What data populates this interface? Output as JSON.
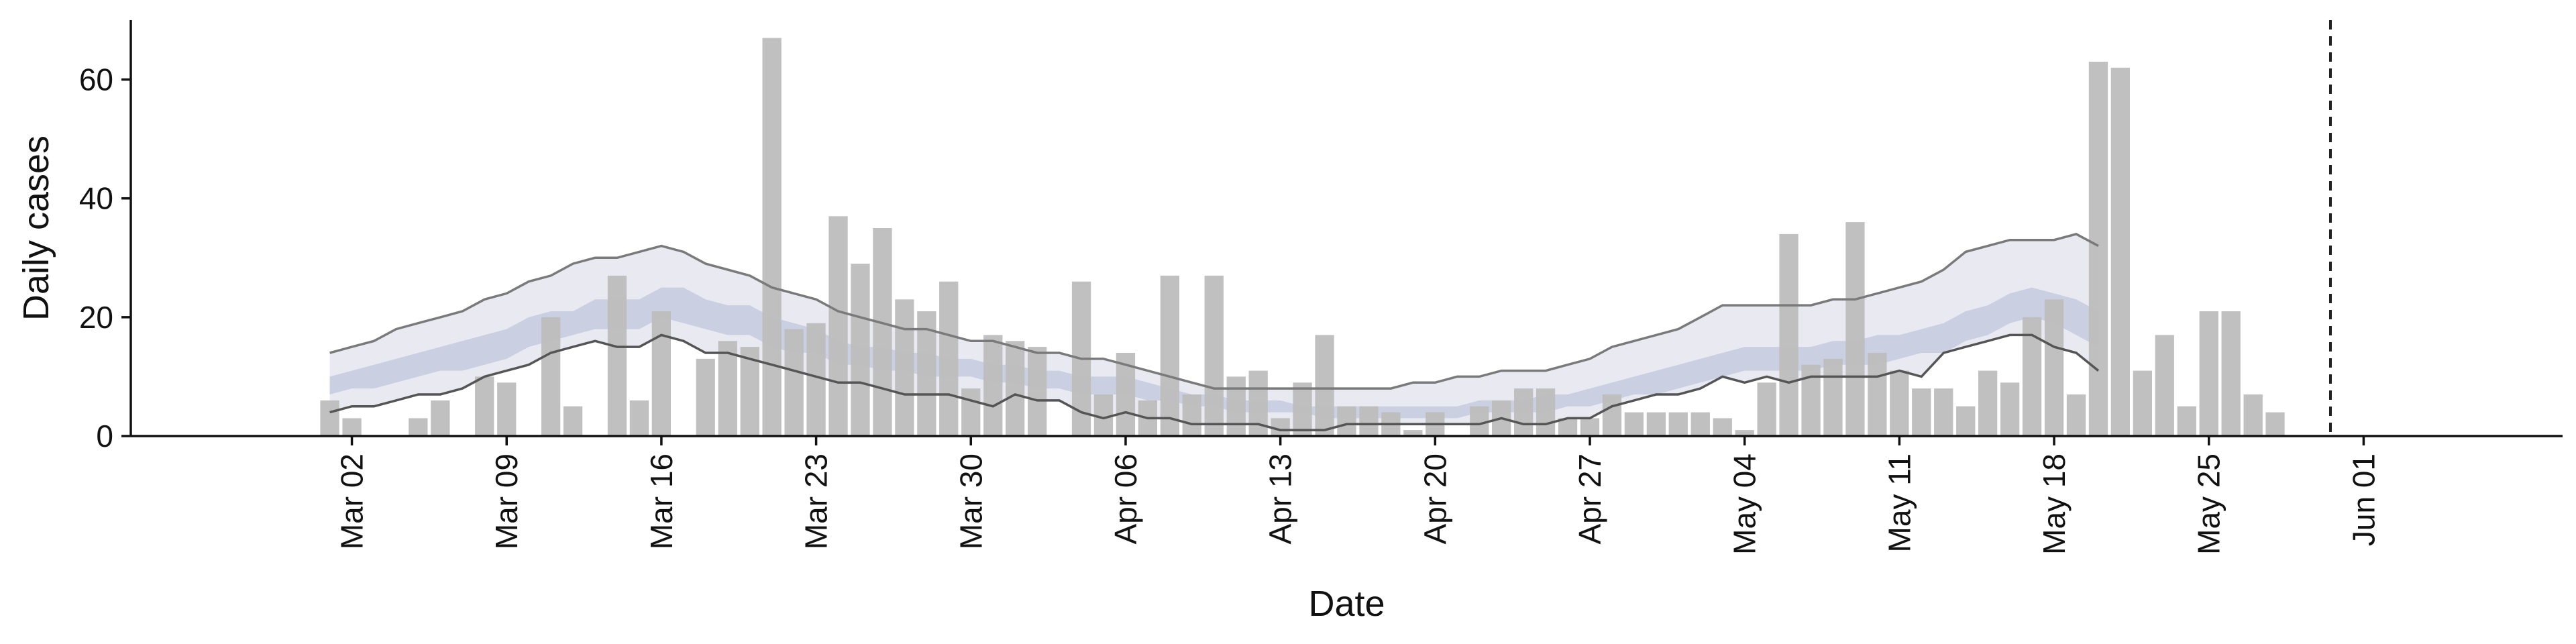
{
  "chart_data": {
    "type": "bar",
    "xlabel": "Date",
    "ylabel": "Daily cases",
    "ylim": [
      0,
      70
    ],
    "yticks": [
      0,
      20,
      40,
      60
    ],
    "x_tick_labels": [
      "Mar 02",
      "Mar 09",
      "Mar 16",
      "Mar 23",
      "Mar 30",
      "Apr 06",
      "Apr 13",
      "Apr 20",
      "Apr 27",
      "May 04",
      "May 11",
      "May 18",
      "May 25",
      "Jun 01"
    ],
    "x_tick_dates": [
      "2020-03-02",
      "2020-03-09",
      "2020-03-16",
      "2020-03-23",
      "2020-03-30",
      "2020-04-06",
      "2020-04-13",
      "2020-04-20",
      "2020-04-27",
      "2020-05-04",
      "2020-05-11",
      "2020-05-18",
      "2020-05-25",
      "2020-06-01"
    ],
    "dates": [
      "2020-03-01",
      "2020-03-02",
      "2020-03-03",
      "2020-03-04",
      "2020-03-05",
      "2020-03-06",
      "2020-03-07",
      "2020-03-08",
      "2020-03-09",
      "2020-03-10",
      "2020-03-11",
      "2020-03-12",
      "2020-03-13",
      "2020-03-14",
      "2020-03-15",
      "2020-03-16",
      "2020-03-17",
      "2020-03-18",
      "2020-03-19",
      "2020-03-20",
      "2020-03-21",
      "2020-03-22",
      "2020-03-23",
      "2020-03-24",
      "2020-03-25",
      "2020-03-26",
      "2020-03-27",
      "2020-03-28",
      "2020-03-29",
      "2020-03-30",
      "2020-03-31",
      "2020-04-01",
      "2020-04-02",
      "2020-04-03",
      "2020-04-04",
      "2020-04-05",
      "2020-04-06",
      "2020-04-07",
      "2020-04-08",
      "2020-04-09",
      "2020-04-10",
      "2020-04-11",
      "2020-04-12",
      "2020-04-13",
      "2020-04-14",
      "2020-04-15",
      "2020-04-16",
      "2020-04-17",
      "2020-04-18",
      "2020-04-19",
      "2020-04-20",
      "2020-04-21",
      "2020-04-22",
      "2020-04-23",
      "2020-04-24",
      "2020-04-25",
      "2020-04-26",
      "2020-04-27",
      "2020-04-28",
      "2020-04-29",
      "2020-04-30",
      "2020-05-01",
      "2020-05-02",
      "2020-05-03",
      "2020-05-04",
      "2020-05-05",
      "2020-05-06",
      "2020-05-07",
      "2020-05-08",
      "2020-05-09",
      "2020-05-10",
      "2020-05-11",
      "2020-05-12",
      "2020-05-13",
      "2020-05-14",
      "2020-05-15",
      "2020-05-16",
      "2020-05-17",
      "2020-05-18",
      "2020-05-19",
      "2020-05-20",
      "2020-05-21",
      "2020-05-22",
      "2020-05-23",
      "2020-05-24",
      "2020-05-25",
      "2020-05-26",
      "2020-05-27",
      "2020-05-28",
      "2020-05-29",
      "2020-05-30",
      "2020-05-31"
    ],
    "daily_cases": [
      6,
      3,
      0,
      0,
      3,
      6,
      0,
      10,
      9,
      0,
      20,
      5,
      0,
      27,
      6,
      21,
      0,
      13,
      16,
      15,
      67,
      18,
      19,
      37,
      29,
      35,
      23,
      21,
      26,
      8,
      17,
      16,
      15,
      0,
      26,
      7,
      14,
      6,
      27,
      7,
      27,
      10,
      11,
      3,
      9,
      17,
      5,
      5,
      4,
      1,
      4,
      0,
      5,
      6,
      8,
      8,
      3,
      3,
      7,
      4,
      4,
      4,
      4,
      3,
      1,
      9,
      34,
      12,
      13,
      36,
      14,
      11,
      8,
      8,
      5,
      11,
      9,
      20,
      23,
      7,
      63,
      62,
      11,
      17,
      5,
      21,
      21,
      7,
      4,
      0,
      0,
      0
    ],
    "forecast_dates": [
      "2020-03-01",
      "2020-03-02",
      "2020-03-03",
      "2020-03-04",
      "2020-03-05",
      "2020-03-06",
      "2020-03-07",
      "2020-03-08",
      "2020-03-09",
      "2020-03-10",
      "2020-03-11",
      "2020-03-12",
      "2020-03-13",
      "2020-03-14",
      "2020-03-15",
      "2020-03-16",
      "2020-03-17",
      "2020-03-18",
      "2020-03-19",
      "2020-03-20",
      "2020-03-21",
      "2020-03-22",
      "2020-03-23",
      "2020-03-24",
      "2020-03-25",
      "2020-03-26",
      "2020-03-27",
      "2020-03-28",
      "2020-03-29",
      "2020-03-30",
      "2020-03-31",
      "2020-04-01",
      "2020-04-02",
      "2020-04-03",
      "2020-04-04",
      "2020-04-05",
      "2020-04-06",
      "2020-04-07",
      "2020-04-08",
      "2020-04-09",
      "2020-04-10",
      "2020-04-11",
      "2020-04-12",
      "2020-04-13",
      "2020-04-14",
      "2020-04-15",
      "2020-04-16",
      "2020-04-17",
      "2020-04-18",
      "2020-04-19",
      "2020-04-20",
      "2020-04-21",
      "2020-04-22",
      "2020-04-23",
      "2020-04-24",
      "2020-04-25",
      "2020-04-26",
      "2020-04-27",
      "2020-04-28",
      "2020-04-29",
      "2020-04-30",
      "2020-05-01",
      "2020-05-02",
      "2020-05-03",
      "2020-05-04",
      "2020-05-05",
      "2020-05-06",
      "2020-05-07",
      "2020-05-08",
      "2020-05-09",
      "2020-05-10",
      "2020-05-11",
      "2020-05-12",
      "2020-05-13",
      "2020-05-14",
      "2020-05-15",
      "2020-05-16",
      "2020-05-17",
      "2020-05-18",
      "2020-05-19",
      "2020-05-20"
    ],
    "bands": {
      "outer_upper": [
        14,
        15,
        16,
        18,
        19,
        20,
        21,
        23,
        24,
        26,
        27,
        29,
        30,
        30,
        31,
        32,
        31,
        29,
        28,
        27,
        25,
        24,
        23,
        21,
        20,
        19,
        18,
        18,
        17,
        16,
        16,
        15,
        14,
        14,
        13,
        13,
        12,
        11,
        10,
        9,
        8,
        8,
        8,
        8,
        8,
        8,
        8,
        8,
        8,
        9,
        9,
        10,
        10,
        11,
        11,
        11,
        12,
        13,
        15,
        16,
        17,
        18,
        20,
        22,
        22,
        22,
        22,
        22,
        23,
        23,
        24,
        25,
        26,
        28,
        31,
        32,
        33,
        33,
        33,
        34,
        32
      ],
      "outer_lower": [
        4,
        5,
        5,
        6,
        7,
        7,
        8,
        10,
        11,
        12,
        14,
        15,
        16,
        15,
        15,
        17,
        16,
        14,
        14,
        13,
        12,
        11,
        10,
        9,
        9,
        8,
        7,
        7,
        7,
        6,
        5,
        7,
        6,
        6,
        4,
        3,
        4,
        3,
        3,
        2,
        2,
        2,
        2,
        1,
        1,
        1,
        2,
        2,
        2,
        2,
        2,
        2,
        2,
        3,
        2,
        2,
        3,
        3,
        5,
        6,
        7,
        7,
        8,
        10,
        9,
        10,
        9,
        10,
        10,
        10,
        10,
        11,
        10,
        14,
        15,
        16,
        17,
        17,
        15,
        14,
        11
      ],
      "inner_upper": [
        10,
        11,
        12,
        13,
        14,
        15,
        16,
        17,
        18,
        20,
        21,
        21,
        23,
        23,
        23,
        25,
        25,
        23,
        22,
        22,
        20,
        19,
        18,
        16,
        15,
        15,
        14,
        14,
        13,
        13,
        12,
        12,
        11,
        11,
        10,
        10,
        10,
        9,
        8,
        7,
        7,
        6,
        6,
        6,
        5,
        5,
        5,
        5,
        5,
        5,
        5,
        5,
        6,
        6,
        6,
        7,
        7,
        8,
        9,
        10,
        11,
        12,
        13,
        14,
        15,
        15,
        15,
        15,
        16,
        16,
        17,
        17,
        18,
        19,
        21,
        22,
        24,
        25,
        24,
        23,
        21
      ],
      "inner_lower": [
        7,
        8,
        8,
        9,
        10,
        11,
        11,
        12,
        13,
        15,
        16,
        17,
        18,
        18,
        18,
        20,
        19,
        18,
        17,
        17,
        15,
        14,
        14,
        12,
        12,
        11,
        11,
        10,
        10,
        10,
        9,
        9,
        8,
        8,
        7,
        7,
        7,
        6,
        6,
        5,
        5,
        4,
        4,
        4,
        4,
        3,
        3,
        3,
        3,
        3,
        3,
        3,
        4,
        4,
        4,
        4,
        5,
        5,
        6,
        7,
        7,
        8,
        9,
        10,
        11,
        11,
        11,
        11,
        12,
        12,
        12,
        13,
        14,
        14,
        16,
        17,
        19,
        20,
        19,
        17,
        15
      ]
    },
    "cutoff_date": "2020-05-30",
    "grid": false,
    "legend": "none",
    "colors": {
      "bars": "#bdbdbd",
      "outer_band": "#e9eaf1",
      "inner_band": "#c8cddf",
      "line_upper": "#7a7a7a",
      "line_lower": "#555555",
      "cutoff": "#222222",
      "axis": "#111111"
    }
  }
}
